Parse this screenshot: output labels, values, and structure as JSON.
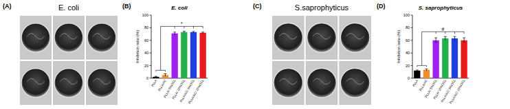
{
  "photo_panels": [
    {
      "label": "(A)",
      "title": "E. coli"
    },
    {
      "label": "(C)",
      "title": "S.saprophyticus"
    }
  ],
  "chart_data": [
    {
      "type": "bar",
      "panel": "(B)",
      "title": "E. coli",
      "y_label": "Inhibition ratio (%)",
      "categories": [
        "PLLA",
        "PLLA/AC",
        "PLLA/ 5%OCL",
        "PLLA/ 10%OCL",
        "PLLA/AC/ 5%OCL",
        "PLLA/AC/ 10%OCL"
      ],
      "values": [
        2,
        5,
        71,
        73,
        73,
        72
      ],
      "errors": [
        1,
        2,
        2,
        1.5,
        1,
        1
      ],
      "colors": [
        "#000000",
        "#f28c28",
        "#a020f0",
        "#22b14c",
        "#1f3fe0",
        "#e81c1c"
      ],
      "ylim": [
        0,
        100
      ],
      "yticks": [
        0,
        20,
        40,
        60,
        80,
        100
      ],
      "annotation": "*"
    },
    {
      "type": "bar",
      "panel": "(D)",
      "title": "S. saprophyticus",
      "y_label": "Inhibition ratio (%)",
      "categories": [
        "PLLA",
        "PLLA/AC",
        "PLLA/ 5%OCL",
        "PLLA/ 10%OCL",
        "PLLA/AC/ 5%OCL",
        "PLLA/AC/ 10%OCL"
      ],
      "values": [
        12,
        13,
        60,
        63,
        63,
        60
      ],
      "errors": [
        1,
        1.5,
        4,
        3,
        3,
        4
      ],
      "colors": [
        "#000000",
        "#f28c28",
        "#a020f0",
        "#22b14c",
        "#1f3fe0",
        "#e81c1c"
      ],
      "ylim": [
        0,
        100
      ],
      "yticks": [
        0,
        20,
        40,
        60,
        80,
        100
      ],
      "annotation": "#"
    }
  ]
}
